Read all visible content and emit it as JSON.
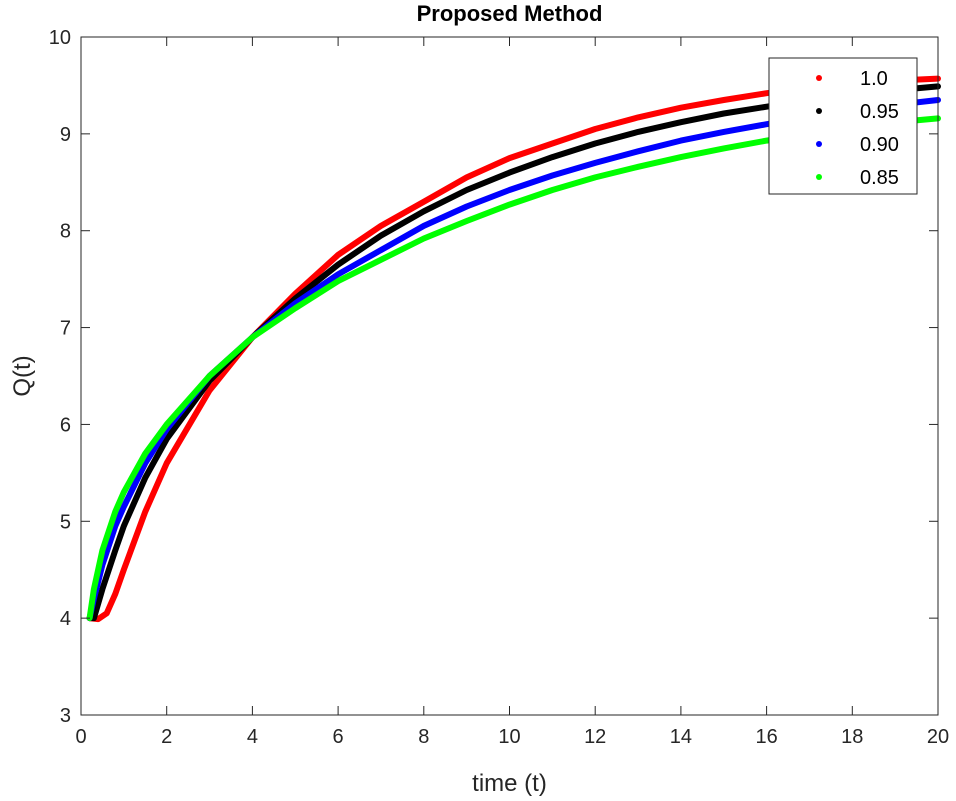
{
  "chart_data": {
    "type": "line",
    "title": "Proposed Method",
    "xlabel": "time (t)",
    "ylabel": "Q(t)",
    "xlim": [
      0,
      20
    ],
    "ylim": [
      3,
      10
    ],
    "xticks": [
      0,
      2,
      4,
      6,
      8,
      10,
      12,
      14,
      16,
      18,
      20
    ],
    "yticks": [
      3,
      4,
      5,
      6,
      7,
      8,
      9,
      10
    ],
    "grid": false,
    "legend_position": "top-right",
    "series": [
      {
        "name": "1.0",
        "color": "#ff0000",
        "x": [
          0.2,
          0.4,
          0.6,
          0.8,
          1.0,
          1.5,
          2,
          3,
          4,
          5,
          6,
          7,
          8,
          9,
          10,
          11,
          12,
          13,
          14,
          15,
          16,
          17,
          18,
          19,
          20
        ],
        "y": [
          4.0,
          3.99,
          4.05,
          4.25,
          4.5,
          5.1,
          5.6,
          6.35,
          6.9,
          7.35,
          7.75,
          8.05,
          8.3,
          8.55,
          8.75,
          8.9,
          9.05,
          9.17,
          9.27,
          9.35,
          9.42,
          9.48,
          9.52,
          9.55,
          9.57
        ]
      },
      {
        "name": "0.95",
        "color": "#000000",
        "x": [
          0.2,
          0.3,
          0.5,
          0.8,
          1.0,
          1.5,
          2,
          3,
          4,
          5,
          6,
          7,
          8,
          9,
          10,
          11,
          12,
          13,
          14,
          15,
          16,
          17,
          18,
          19,
          20
        ],
        "y": [
          4.0,
          4.0,
          4.3,
          4.7,
          4.95,
          5.45,
          5.85,
          6.45,
          6.9,
          7.3,
          7.65,
          7.95,
          8.2,
          8.42,
          8.6,
          8.76,
          8.9,
          9.02,
          9.12,
          9.21,
          9.28,
          9.35,
          9.41,
          9.45,
          9.49
        ]
      },
      {
        "name": "0.90",
        "color": "#0000ff",
        "x": [
          0.2,
          0.3,
          0.5,
          0.8,
          1.0,
          1.5,
          2,
          3,
          4,
          5,
          6,
          7,
          8,
          9,
          10,
          11,
          12,
          13,
          14,
          15,
          16,
          17,
          18,
          19,
          20
        ],
        "y": [
          4.0,
          4.2,
          4.55,
          4.95,
          5.15,
          5.6,
          5.95,
          6.5,
          6.9,
          7.25,
          7.55,
          7.8,
          8.05,
          8.25,
          8.42,
          8.57,
          8.7,
          8.82,
          8.93,
          9.02,
          9.1,
          9.17,
          9.24,
          9.3,
          9.35
        ]
      },
      {
        "name": "0.85",
        "color": "#00ff00",
        "x": [
          0.2,
          0.3,
          0.5,
          0.8,
          1.0,
          1.5,
          2,
          3,
          4,
          5,
          6,
          7,
          8,
          9,
          10,
          11,
          12,
          13,
          14,
          15,
          16,
          17,
          18,
          19,
          20
        ],
        "y": [
          4.0,
          4.3,
          4.7,
          5.1,
          5.3,
          5.7,
          6.0,
          6.5,
          6.9,
          7.2,
          7.48,
          7.7,
          7.92,
          8.1,
          8.27,
          8.42,
          8.55,
          8.66,
          8.76,
          8.85,
          8.93,
          9.0,
          9.06,
          9.12,
          9.16
        ]
      }
    ]
  }
}
